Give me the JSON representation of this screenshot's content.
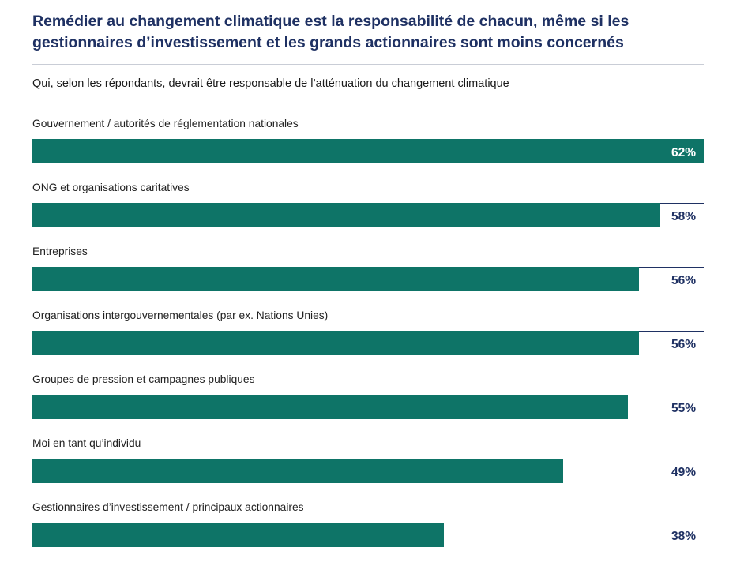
{
  "header": {
    "title": "Remédier au changement climatique est la responsabilité de chacun, même si les gestionnaires d’investissement et les grands actionnaires sont moins concernés",
    "subtitle": "Qui, selon les répondants, devrait être responsable de l’atténuation du changement climatique"
  },
  "colors": {
    "bar": "#0e7467",
    "title": "#1f3163",
    "value_inside": "#ffffff",
    "value_outside": "#1f3163",
    "rule": "#1f3163"
  },
  "chart_data": {
    "type": "bar",
    "orientation": "horizontal",
    "categories": [
      "Gouvernement / autorités de réglementation nationales",
      "ONG et organisations caritatives",
      "Entreprises",
      "Organisations intergouvernementales (par ex. Nations Unies)",
      "Groupes de pression et campagnes publiques",
      "Moi en tant qu’individu",
      "Gestionnaires d’investissement / principaux actionnaires"
    ],
    "values": [
      62,
      58,
      56,
      56,
      55,
      49,
      38
    ],
    "value_labels": [
      "62%",
      "58%",
      "56%",
      "56%",
      "55%",
      "49%",
      "38%"
    ],
    "unit": "%",
    "xlim": [
      0,
      62
    ],
    "grid": false,
    "legend": "none",
    "title": "Remédier au changement climatique est la responsabilité de chacun, même si les gestionnaires d’investissement et les grands actionnaires sont moins concernés",
    "subtitle": "Qui, selon les répondants, devrait être responsable de l’atténuation du changement climatique"
  }
}
